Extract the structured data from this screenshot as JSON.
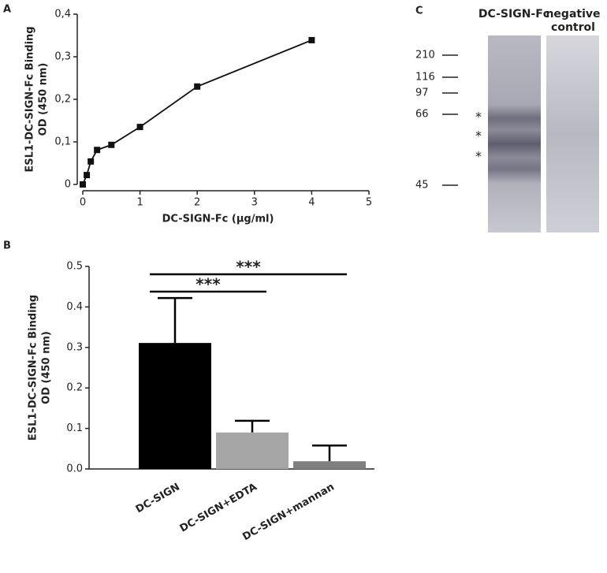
{
  "chart_data": [
    {
      "type": "line",
      "panel": "A",
      "xlabel": "DC-SIGN-Fc (µg/ml)",
      "ylabel": [
        "ESL1-DC-SIGN-Fc Binding",
        "OD (450 nm)"
      ],
      "x": [
        0,
        0.07,
        0.14,
        0.25,
        0.5,
        1,
        2,
        4
      ],
      "series": [
        {
          "name": "ESL1-DC-SIGN-Fc Binding",
          "color": "#111111",
          "values": [
            0,
            0.022,
            0.054,
            0.081,
            0.093,
            0.135,
            0.23,
            0.339
          ]
        }
      ],
      "xlim": [
        0,
        5
      ],
      "xticks": [
        0,
        1,
        2,
        3,
        4,
        5
      ],
      "ylim": [
        0,
        0.4
      ],
      "yticks": [
        0,
        {
          "value": 0.1,
          "label": "0,1"
        },
        {
          "value": 0.2,
          "label": "0,2"
        },
        {
          "value": 0.3,
          "label": "0,3"
        },
        {
          "value": 0.4,
          "label": "0,4"
        }
      ]
    },
    {
      "type": "bar",
      "panel": "B",
      "ylabel": [
        "ESL1-DC-SIGN-Fc Binding",
        "OD (450 nm)"
      ],
      "categories": [
        "DC-SIGN",
        "DC-SIGN+EDTA",
        "DC-SIGN+mannan"
      ],
      "values": [
        0.311,
        0.09,
        0.019
      ],
      "errors": [
        0.111,
        0.029,
        0.039
      ],
      "colors": [
        "#000000",
        "#a6a6a6",
        "#7f7f7f"
      ],
      "ylim": [
        0,
        0.5
      ],
      "yticks": [
        {
          "value": 0,
          "label": "0.0"
        },
        0.1,
        0.2,
        0.3,
        0.4,
        0.5
      ],
      "annotations": [
        "***",
        "***"
      ]
    }
  ],
  "gel": {
    "panel": "C",
    "lanes": [
      [
        "DC-SIGN-Fc"
      ],
      [
        "negative",
        "control"
      ]
    ],
    "markers": [
      210,
      116,
      97,
      66,
      45
    ],
    "band_marks": [
      "*",
      "*",
      "*"
    ]
  }
}
